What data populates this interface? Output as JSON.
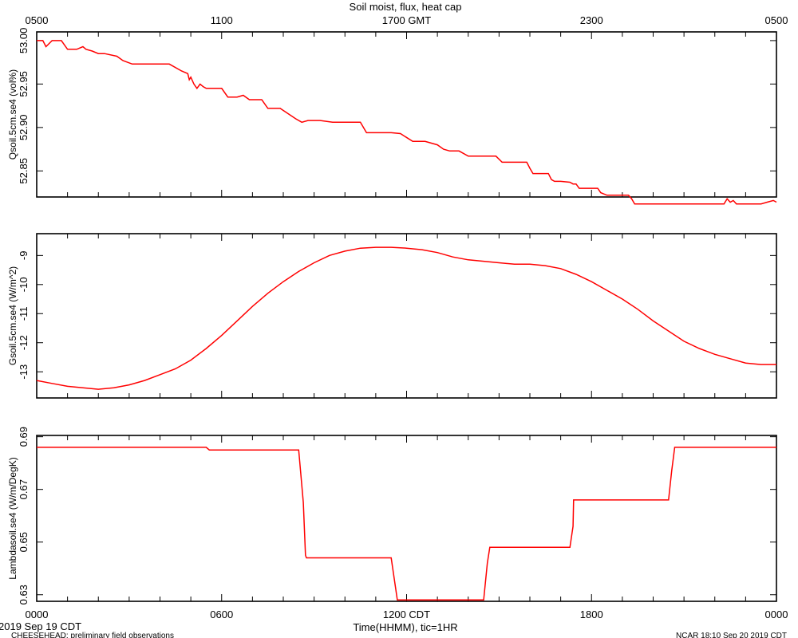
{
  "title": "Soil moist, flux, heat cap",
  "top_axis": {
    "ticks": [
      "0500",
      "1100",
      "1700 GMT",
      "2300",
      "0500"
    ]
  },
  "bottom_axis": {
    "ticks": [
      "0000",
      "0600",
      "1200 CDT",
      "1800",
      "0000"
    ],
    "label": "Time(HHMM), tic=1HR"
  },
  "footer": {
    "date": "2019 Sep 19 CDT",
    "project": "CHEESEHEAD: preliminary field observations",
    "stamp": "NCAR 18:10 Sep 20 2019 CDT"
  },
  "colors": {
    "series": "#ff0000",
    "axes": "#000000",
    "background": "#ffffff"
  },
  "chart_data": [
    {
      "type": "line",
      "ylabel": "Qsoil.5cm.se4 (vol%)",
      "ylim": [
        52.82,
        53.01
      ],
      "yticks": [
        53.0,
        52.95,
        52.9,
        52.85
      ],
      "ytick_labels": [
        "53.00",
        "52.95",
        "52.90",
        "52.85"
      ],
      "x_unit": "hours since 0000 CDT",
      "xlim": [
        0,
        24
      ],
      "series": [
        {
          "x": [
            0,
            0.2,
            0.3,
            0.5,
            0.8,
            1.0,
            1.1,
            1.3,
            1.5,
            1.6,
            1.8,
            2.0,
            2.2,
            2.6,
            2.8,
            3.1,
            3.4,
            3.6,
            4.3,
            4.7,
            4.9,
            4.95,
            5.0,
            5.1,
            5.2,
            5.3,
            5.4,
            5.5,
            5.6,
            6.0,
            6.2,
            6.5,
            6.7,
            6.9,
            7.3,
            7.5,
            7.9,
            8.4,
            8.6,
            8.8,
            9.2,
            9.6,
            10.2,
            10.5,
            10.7,
            11.5,
            11.8,
            12.2,
            12.5,
            12.6,
            13.0,
            13.2,
            13.4,
            13.7,
            14.0,
            14.2,
            14.6,
            14.9,
            15.1,
            15.3,
            15.8,
            15.9,
            16.0,
            16.1,
            16.2,
            16.4,
            16.6,
            16.7,
            16.8,
            17.0,
            17.3,
            17.4,
            17.5,
            17.6,
            18.0,
            18.2,
            18.3,
            18.5,
            18.9,
            19.0,
            19.2,
            19.3,
            19.4,
            19.6,
            19.9,
            20.4,
            20.8,
            21.6,
            21.8,
            22.2,
            22.3,
            22.4,
            22.5,
            22.6,
            22.7,
            22.8,
            23.0,
            23.2,
            23.5,
            23.7,
            23.9,
            24.0
          ],
          "y": [
            53.0,
            53.0,
            52.993,
            53.0,
            53.0,
            52.99,
            52.99,
            52.99,
            52.993,
            52.99,
            52.988,
            52.985,
            52.985,
            52.982,
            52.977,
            52.973,
            52.973,
            52.973,
            52.973,
            52.965,
            52.962,
            52.955,
            52.958,
            52.95,
            52.945,
            52.95,
            52.947,
            52.945,
            52.945,
            52.945,
            52.935,
            52.935,
            52.937,
            52.932,
            52.932,
            52.922,
            52.922,
            52.91,
            52.906,
            52.908,
            52.908,
            52.906,
            52.906,
            52.906,
            52.894,
            52.894,
            52.893,
            52.884,
            52.884,
            52.884,
            52.88,
            52.875,
            52.873,
            52.873,
            52.867,
            52.867,
            52.867,
            52.867,
            52.86,
            52.86,
            52.86,
            52.86,
            52.853,
            52.847,
            52.847,
            52.847,
            52.847,
            52.84,
            52.838,
            52.838,
            52.837,
            52.835,
            52.835,
            52.83,
            52.83,
            52.83,
            52.825,
            52.822,
            52.822,
            52.822,
            52.822,
            52.818,
            52.812,
            52.812,
            52.812,
            52.812,
            52.812,
            52.812,
            52.812,
            52.812,
            52.812,
            52.818,
            52.814,
            52.816,
            52.812,
            52.812,
            52.812,
            52.812,
            52.812,
            52.814,
            52.816,
            52.814
          ]
        }
      ]
    },
    {
      "type": "line",
      "ylabel": "Gsoil.5cm.se4 (W/m^2)",
      "ylim": [
        -13.9,
        -8.25
      ],
      "yticks": [
        -9,
        -10,
        -11,
        -12,
        -13
      ],
      "ytick_labels": [
        "-9",
        "-10",
        "-11",
        "-12",
        "-13"
      ],
      "x_unit": "hours since 0000 CDT",
      "xlim": [
        0,
        24
      ],
      "series": [
        {
          "x": [
            0,
            0.5,
            1.0,
            1.5,
            2.0,
            2.5,
            3.0,
            3.5,
            4.0,
            4.5,
            5.0,
            5.5,
            6.0,
            6.5,
            7.0,
            7.5,
            8.0,
            8.5,
            9.0,
            9.5,
            10.0,
            10.5,
            11.0,
            11.5,
            12.0,
            12.5,
            13.0,
            13.5,
            14.0,
            14.5,
            15.0,
            15.5,
            16.0,
            16.5,
            17.0,
            17.5,
            18.0,
            18.5,
            19.0,
            19.5,
            20.0,
            20.5,
            21.0,
            21.5,
            22.0,
            22.5,
            23.0,
            23.5,
            24.0
          ],
          "y": [
            -13.3,
            -13.4,
            -13.5,
            -13.55,
            -13.6,
            -13.55,
            -13.45,
            -13.3,
            -13.1,
            -12.9,
            -12.6,
            -12.2,
            -11.75,
            -11.25,
            -10.75,
            -10.3,
            -9.9,
            -9.55,
            -9.25,
            -9.0,
            -8.85,
            -8.75,
            -8.72,
            -8.72,
            -8.75,
            -8.8,
            -8.9,
            -9.05,
            -9.15,
            -9.2,
            -9.25,
            -9.3,
            -9.3,
            -9.35,
            -9.45,
            -9.65,
            -9.9,
            -10.2,
            -10.5,
            -10.85,
            -11.25,
            -11.6,
            -11.95,
            -12.2,
            -12.4,
            -12.55,
            -12.7,
            -12.75,
            -12.75
          ]
        }
      ]
    },
    {
      "type": "line",
      "ylabel": "Lambdasoil.se4 (W/m/DegK)",
      "ylim": [
        0.6275,
        0.6905
      ],
      "yticks": [
        0.69,
        0.67,
        0.65,
        0.63
      ],
      "ytick_labels": [
        "0.69",
        "0.67",
        "0.65",
        "0.63"
      ],
      "x_unit": "hours since 0000 CDT",
      "xlim": [
        0,
        24
      ],
      "series": [
        {
          "x": [
            0,
            5.5,
            5.6,
            8.5,
            8.65,
            8.72,
            8.75,
            11.5,
            11.65,
            11.7,
            14.5,
            14.62,
            14.7,
            17.3,
            17.4,
            17.42,
            20.5,
            20.6,
            20.7,
            24.0
          ],
          "y": [
            0.686,
            0.686,
            0.685,
            0.685,
            0.665,
            0.645,
            0.644,
            0.644,
            0.632,
            0.628,
            0.628,
            0.642,
            0.648,
            0.648,
            0.656,
            0.666,
            0.666,
            0.677,
            0.686,
            0.686
          ]
        }
      ]
    }
  ]
}
